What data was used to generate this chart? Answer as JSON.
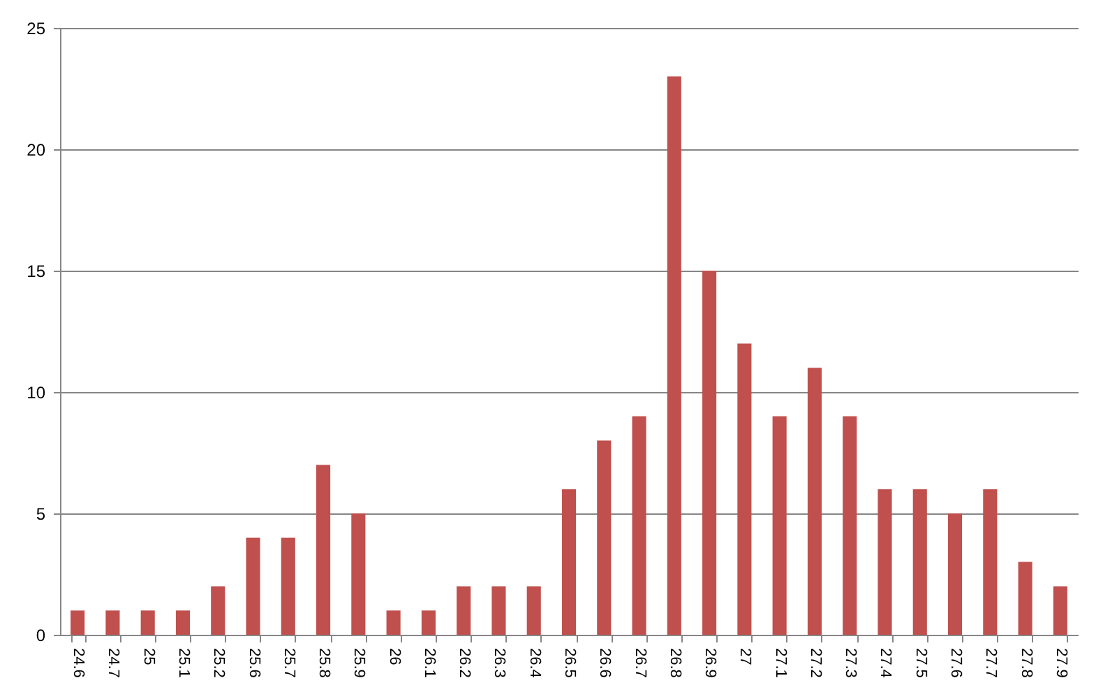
{
  "chart_data": {
    "type": "bar",
    "categories": [
      "24.6",
      "24.7",
      "25",
      "25.1",
      "25.2",
      "25.6",
      "25.7",
      "25.8",
      "25.9",
      "26",
      "26.1",
      "26.2",
      "26.3",
      "26.4",
      "26.5",
      "26.6",
      "26.7",
      "26.8",
      "26.9",
      "27",
      "27.1",
      "27.2",
      "27.3",
      "27.4",
      "27.5",
      "27.6",
      "27.7",
      "27.8",
      "27.9"
    ],
    "values": [
      1,
      1,
      1,
      1,
      2,
      4,
      4,
      7,
      5,
      1,
      1,
      2,
      2,
      2,
      6,
      8,
      9,
      23,
      15,
      12,
      9,
      11,
      9,
      6,
      6,
      5,
      6,
      3,
      2
    ],
    "color": "#c0504d",
    "ylim": [
      0,
      25
    ],
    "yticks": [
      0,
      5,
      10,
      15,
      20,
      25
    ],
    "grid": "y"
  }
}
